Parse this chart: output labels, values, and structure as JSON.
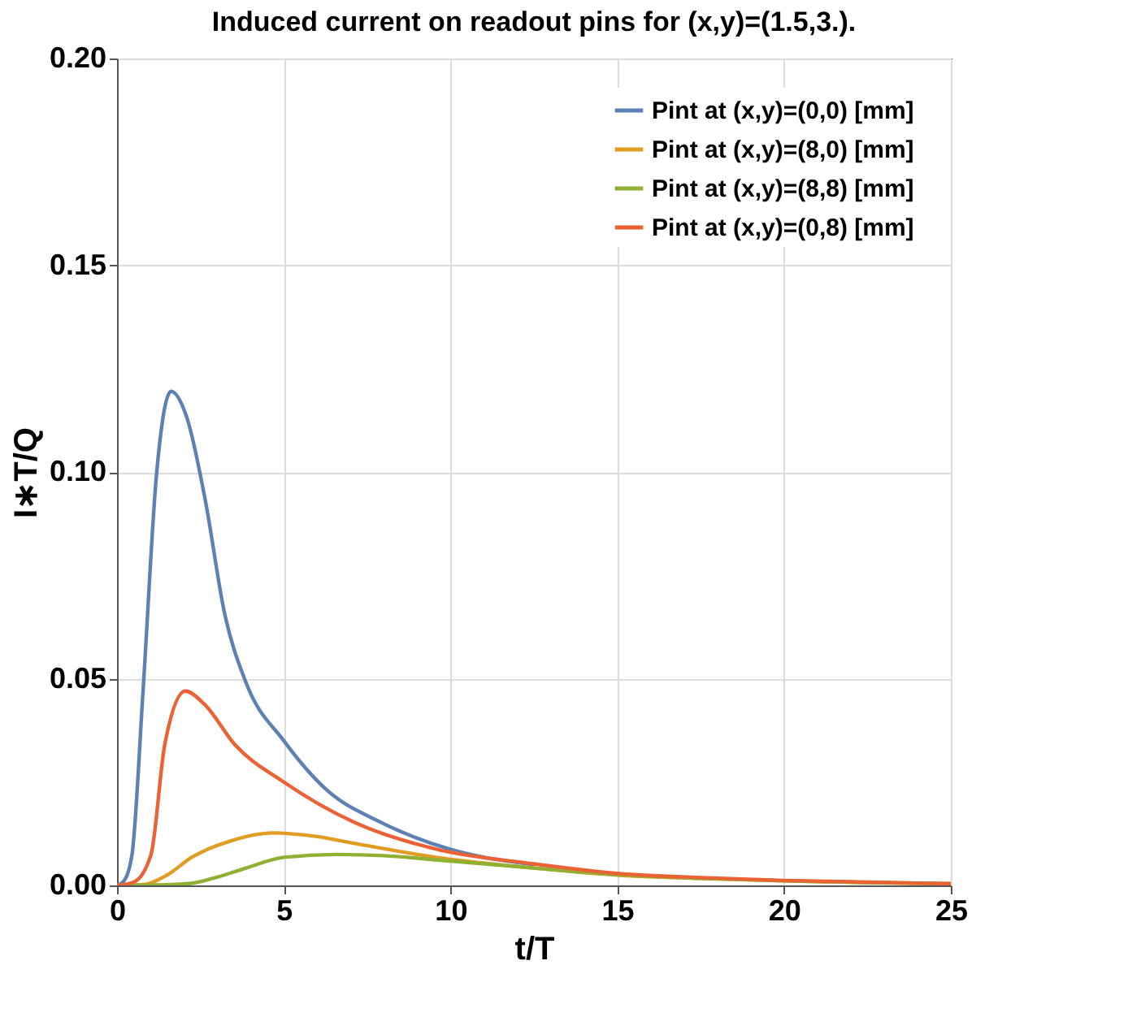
{
  "chart_data": {
    "type": "line",
    "title": "Induced current on readout pins for (x,y)=(1.5,3.).",
    "xlabel": "t/T",
    "ylabel": "I∗T/Q",
    "xlim": [
      0,
      25
    ],
    "ylim": [
      0,
      0.2
    ],
    "xticks": [
      0,
      5,
      10,
      15,
      20,
      25
    ],
    "yticks": [
      {
        "value": 0,
        "label": "0.00"
      },
      {
        "value": 0.05,
        "label": "0.05"
      },
      {
        "value": 0.1,
        "label": "0.10"
      },
      {
        "value": 0.15,
        "label": "0.15"
      },
      {
        "value": 0.2,
        "label": "0.20"
      }
    ],
    "grid": true,
    "legend": "top right",
    "marker": "none",
    "line_style": "solid",
    "series": [
      {
        "name": "Pint at (x,y)=(0,0) [mm]",
        "color": "#5e81b5",
        "x": [
          0,
          0.2,
          0.45,
          0.78,
          1.18,
          1.62,
          2.1,
          2.65,
          3.22,
          3.87,
          5.0,
          6.3,
          7.9,
          9.96,
          12.5
        ],
        "values": [
          0,
          0.001,
          0.0075,
          0.047,
          0.099,
          0.1195,
          0.113,
          0.093,
          0.066,
          0.049,
          0.035,
          0.023,
          0.0153,
          0.0088,
          0.005
        ]
      },
      {
        "name": "Pint at (x,y)=(8,0) [mm]",
        "color": "#e19c24",
        "x": [
          0,
          0.8,
          1.5,
          2.24,
          3.38,
          4.68,
          6.0,
          7.1,
          9.55,
          12.5,
          15,
          17.5,
          20,
          22.5,
          25
        ],
        "values": [
          0,
          0.0002,
          0.0025,
          0.0068,
          0.0107,
          0.0127,
          0.0118,
          0.0102,
          0.0068,
          0.0042,
          0.0025,
          0.0017,
          0.0011,
          0.0007,
          0.0004
        ]
      },
      {
        "name": "Pint at (x,y)=(8,8) [mm]",
        "color": "#8fb032",
        "x": [
          0,
          1.2,
          2.2,
          3.0,
          3.87,
          5.0,
          6.6,
          8.0,
          9.55,
          12.5,
          15,
          17.5,
          20,
          22.5,
          25
        ],
        "values": [
          0,
          0.0001,
          0.0005,
          0.002,
          0.0042,
          0.0068,
          0.0075,
          0.0072,
          0.0062,
          0.0042,
          0.0026,
          0.0017,
          0.0011,
          0.0007,
          0.0004
        ]
      },
      {
        "name": "Pint at (x,y)=(0,8) [mm]",
        "color": "#eb6235",
        "x": [
          0,
          0.5,
          1.02,
          1.43,
          2.05,
          2.6,
          3.54,
          5.0,
          7.1,
          9.55,
          12.5,
          15,
          17.5,
          20,
          22.5,
          25
        ],
        "values": [
          0,
          0.0008,
          0.0075,
          0.034,
          0.047,
          0.044,
          0.034,
          0.025,
          0.0153,
          0.0088,
          0.0052,
          0.0029,
          0.0019,
          0.0012,
          0.0008,
          0.0004
        ]
      }
    ]
  }
}
